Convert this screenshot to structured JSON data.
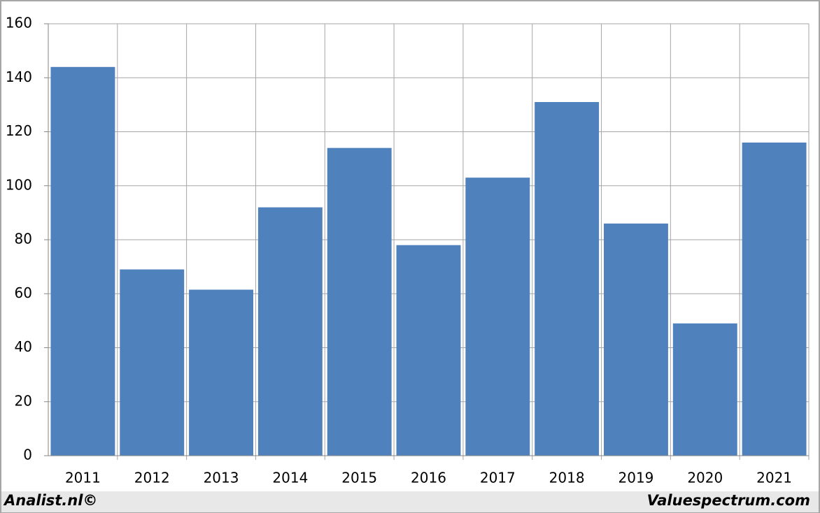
{
  "chart_data": {
    "type": "bar",
    "categories": [
      "2011",
      "2012",
      "2013",
      "2014",
      "2015",
      "2016",
      "2017",
      "2018",
      "2019",
      "2020",
      "2021"
    ],
    "values": [
      144,
      69,
      61.5,
      92,
      114,
      78,
      103,
      131,
      86,
      49,
      116
    ],
    "color": "#4f81bd",
    "ylim": [
      0,
      160
    ],
    "yticks": [
      0,
      20,
      40,
      60,
      80,
      100,
      120,
      140,
      160
    ],
    "grid": true,
    "footer": [
      "Analist.nl©",
      "Valuespectrum.com"
    ]
  }
}
